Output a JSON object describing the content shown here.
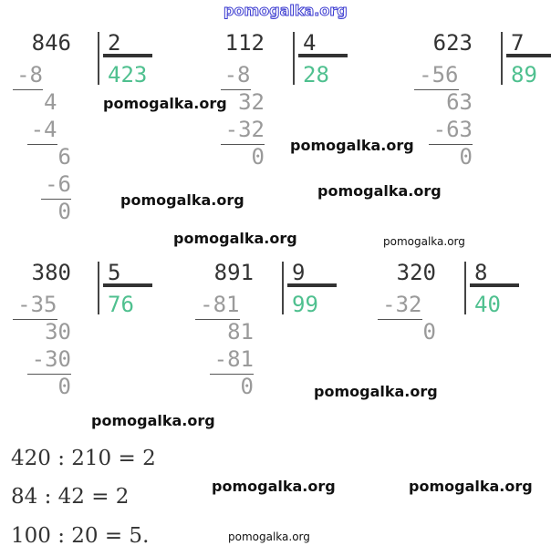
{
  "divisions": [
    {
      "dividend": "846",
      "divisor": "2",
      "quotient": "423",
      "steps": [
        "-8",
        "4",
        "-4",
        "6",
        "-6",
        "0"
      ]
    },
    {
      "dividend": "112",
      "divisor": "4",
      "quotient": "28",
      "steps": [
        "-8",
        "32",
        "-32",
        "0"
      ]
    },
    {
      "dividend": "623",
      "divisor": "7",
      "quotient": "89",
      "steps": [
        "-56",
        "63",
        "-63",
        "0"
      ]
    },
    {
      "dividend": "380",
      "divisor": "5",
      "quotient": "76",
      "steps": [
        "-35",
        "30",
        "-30",
        "0"
      ]
    },
    {
      "dividend": "891",
      "divisor": "9",
      "quotient": "99",
      "steps": [
        "-81",
        "81",
        "-81",
        "0"
      ]
    },
    {
      "dividend": "320",
      "divisor": "8",
      "quotient": "40",
      "steps": [
        "-32",
        "0"
      ]
    }
  ],
  "equations": [
    "420 : 210 = 2",
    "84 : 42 = 2",
    "100 : 20 = 5."
  ],
  "watermark": "pomogalka.org",
  "colors": {
    "quotient": "#4fc08f",
    "watermark_top": "#3a3ad0"
  }
}
